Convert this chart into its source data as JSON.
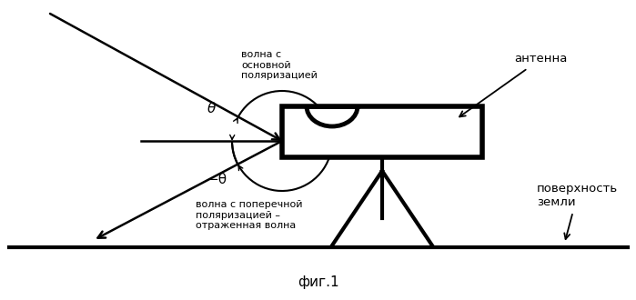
{
  "bg_color": "#ffffff",
  "line_color": "#000000",
  "fig_width": 6.99,
  "fig_height": 3.3,
  "dpi": 100,
  "text_volna_osnov": "волна с\nосновной\nполяризацией",
  "text_volna_poper": "волна с поперечной\nполяризацией –\nотраженная волна",
  "text_antenna": "антенна",
  "text_ground": "поверхность\nземли",
  "text_theta": "θ",
  "text_minus_theta": "−θ",
  "text_fig": "фиг.1"
}
